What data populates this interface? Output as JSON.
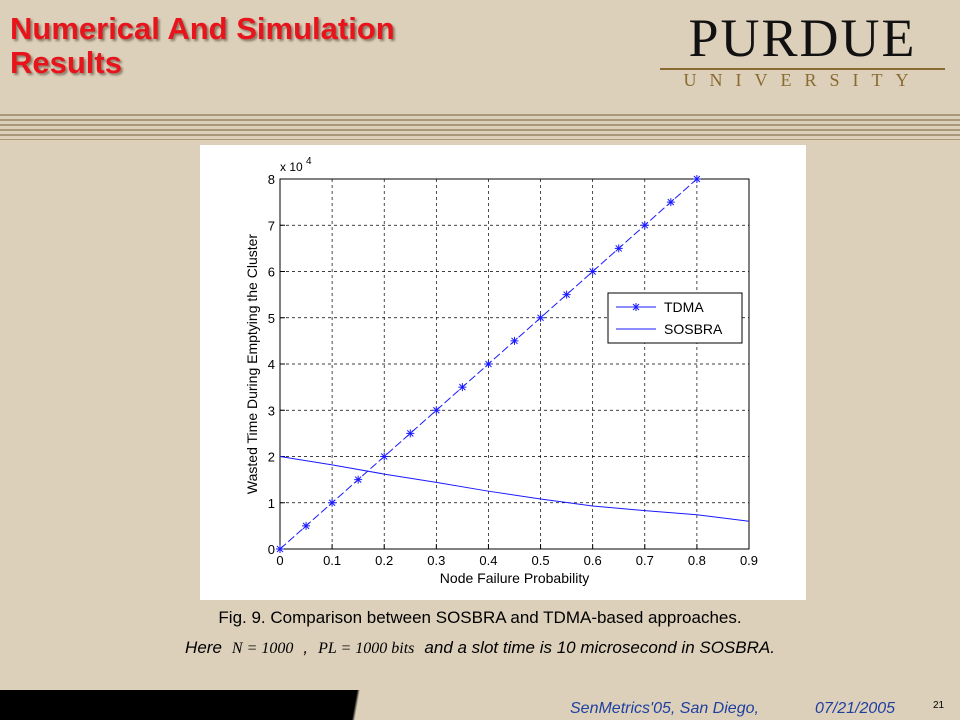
{
  "slide": {
    "title_line1": "Numerical And Simulation",
    "title_line2": "Results",
    "logo_name": "PURDUE",
    "logo_sub": "UNIVERSITY",
    "caption_line1": "Fig. 9. Comparison between SOSBRA and TDMA-based approaches.",
    "caption_here": "Here",
    "formula_n": "N = 1000",
    "caption_comma": ",",
    "formula_pl": "PL = 1000 bits",
    "caption_rest": "and a slot time is 10 microsecond in SOSBRA.",
    "footer_event": "SenMetrics'05, San Diego,",
    "footer_date": "07/21/2005",
    "page_number": "21"
  },
  "chart_data": {
    "type": "line",
    "xlabel": "Node Failure Probability",
    "ylabel": "Wasted Time During Emptying the Cluster",
    "y_multiplier": "x 10",
    "y_multiplier_exponent": "4",
    "xlim": [
      0,
      0.9
    ],
    "xticks": [
      0,
      0.1,
      0.2,
      0.3,
      0.4,
      0.5,
      0.6,
      0.7,
      0.8,
      0.9
    ],
    "ylim": [
      0,
      8
    ],
    "yticks": [
      0,
      1,
      2,
      3,
      4,
      5,
      6,
      7,
      8
    ],
    "grid": true,
    "legend": "right",
    "series": [
      {
        "name": "TDMA",
        "color": "#1a1aff",
        "marker": "star",
        "x": [
          0,
          0.05,
          0.1,
          0.15,
          0.2,
          0.25,
          0.3,
          0.35,
          0.4,
          0.45,
          0.5,
          0.55,
          0.6,
          0.65,
          0.7,
          0.75,
          0.8
        ],
        "values": [
          0,
          0.5,
          1,
          1.5,
          2,
          2.5,
          3,
          3.5,
          4,
          4.5,
          5,
          5.5,
          6,
          6.5,
          7,
          7.5,
          8
        ]
      },
      {
        "name": "SOSBRA",
        "color": "#1a1aff",
        "x": [
          0,
          0.1,
          0.2,
          0.3,
          0.4,
          0.5,
          0.6,
          0.7,
          0.8,
          0.9
        ],
        "values": [
          2,
          1.82,
          1.62,
          1.44,
          1.25,
          1.08,
          0.93,
          0.83,
          0.74,
          0.6
        ]
      }
    ]
  }
}
